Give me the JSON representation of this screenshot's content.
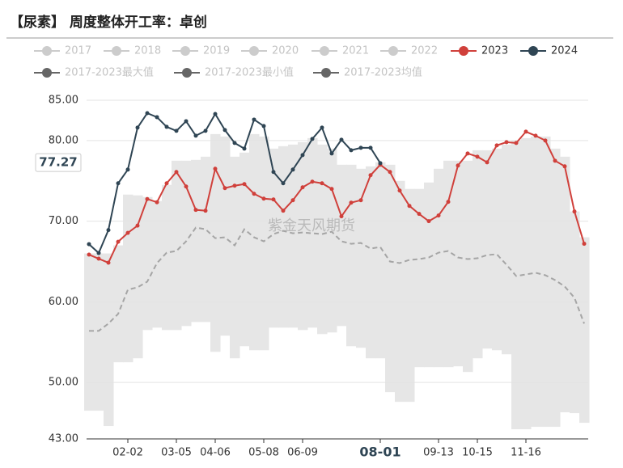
{
  "chart_data": {
    "type": "line",
    "title": "【尿素】 周度整体开工率：卓创",
    "watermark": "紫金天风期货",
    "categories": [
      null,
      null,
      null,
      null,
      "02-02",
      null,
      null,
      null,
      null,
      "03-05",
      null,
      null,
      null,
      "04-06",
      null,
      null,
      null,
      null,
      "05-08",
      null,
      null,
      null,
      "06-09",
      null,
      null,
      null,
      null,
      null,
      null,
      null,
      "08-01",
      null,
      null,
      null,
      null,
      null,
      "09-13",
      null,
      null,
      null,
      "10-15",
      null,
      null,
      null,
      null,
      "11-16",
      null,
      null,
      null,
      null,
      null,
      null
    ],
    "highlight_category": 30,
    "pointer_value": 77.27,
    "ylim": [
      43,
      85
    ],
    "yticks": [
      {
        "value": 43,
        "label": "43.00"
      },
      {
        "value": 50,
        "label": "50.00"
      },
      {
        "value": 60,
        "label": "60.00"
      },
      {
        "value": 70,
        "label": "70.00"
      },
      {
        "value": 80,
        "label": "80.00"
      },
      {
        "value": 85,
        "label": "85.00"
      }
    ],
    "grid": true,
    "series": [
      {
        "name": "2017",
        "color": "#cccccc",
        "visible": false
      },
      {
        "name": "2018",
        "color": "#cccccc",
        "visible": false
      },
      {
        "name": "2019",
        "color": "#cccccc",
        "visible": false
      },
      {
        "name": "2020",
        "color": "#cccccc",
        "visible": false
      },
      {
        "name": "2021",
        "color": "#cccccc",
        "visible": false
      },
      {
        "name": "2022",
        "color": "#cccccc",
        "visible": false
      },
      {
        "name": "2023",
        "color": "#d0403b",
        "visible": true,
        "values": [
          65.85,
          65.35,
          64.85,
          67.45,
          68.55,
          69.45,
          72.75,
          72.35,
          74.7,
          76.1,
          74.3,
          71.4,
          71.3,
          76.5,
          74.1,
          74.4,
          74.6,
          73.4,
          72.8,
          72.7,
          71.3,
          72.6,
          74.2,
          74.9,
          74.7,
          74.0,
          70.6,
          72.3,
          72.6,
          75.7,
          77.0,
          76.1,
          73.8,
          71.9,
          70.9,
          70.0,
          70.7,
          72.4,
          76.9,
          78.4,
          78.0,
          77.3,
          79.4,
          79.8,
          79.7,
          81.1,
          80.6,
          80.0,
          77.5,
          76.8,
          71.2,
          67.2
        ]
      },
      {
        "name": "2024",
        "color": "#2f4554",
        "visible": true,
        "values": [
          67.15,
          66.05,
          68.9,
          74.7,
          76.4,
          81.6,
          83.4,
          82.9,
          81.7,
          81.2,
          82.4,
          80.6,
          81.2,
          83.3,
          81.3,
          79.7,
          79.0,
          82.6,
          81.8,
          76.1,
          74.7,
          76.4,
          78.2,
          80.2,
          81.6,
          78.4,
          80.1,
          78.8,
          79.1,
          79.1,
          77.2,
          null,
          null,
          null,
          null,
          null,
          null,
          null,
          null,
          null,
          null,
          null,
          null,
          null,
          null,
          null,
          null,
          null,
          null,
          null,
          null,
          null
        ]
      },
      {
        "name": "2017-2023最大值",
        "color": "#666666",
        "role": "band-top",
        "values": [
          66.0,
          66.0,
          66.0,
          67.0,
          73.3,
          73.2,
          73.0,
          72.5,
          74.5,
          77.5,
          77.5,
          77.6,
          78.0,
          80.8,
          80.5,
          78.0,
          78.5,
          80.8,
          80.5,
          79.0,
          79.3,
          79.5,
          79.8,
          80.3,
          79.5,
          79.0,
          77.0,
          77.0,
          76.5,
          76.8,
          77.3,
          77.0,
          75.0,
          74.0,
          74.0,
          74.8,
          76.5,
          77.5,
          77.5,
          77.5,
          78.8,
          78.8,
          79.0,
          79.5,
          80.0,
          80.3,
          80.5,
          80.5,
          79.0,
          78.0,
          71.2,
          68.0
        ]
      },
      {
        "name": "2017-2023最小值",
        "color": "#666666",
        "role": "band-bottom",
        "values": [
          46.5,
          46.5,
          44.6,
          52.5,
          52.5,
          53.0,
          56.5,
          56.8,
          56.5,
          56.5,
          57.0,
          57.5,
          57.5,
          53.8,
          55.8,
          53.0,
          54.5,
          54.0,
          54.0,
          56.8,
          56.8,
          56.8,
          56.5,
          56.8,
          56.0,
          56.2,
          57.0,
          54.5,
          54.3,
          53.0,
          53.0,
          48.8,
          47.6,
          47.6,
          51.9,
          51.9,
          51.9,
          51.9,
          52.0,
          51.3,
          53.0,
          54.2,
          54.0,
          53.5,
          44.2,
          44.2,
          44.5,
          44.5,
          44.5,
          46.3,
          46.2,
          45.0
        ]
      },
      {
        "name": "2017-2023均值",
        "color": "#666666",
        "role": "mean",
        "values": [
          56.4,
          56.4,
          57.3,
          58.5,
          61.5,
          61.8,
          62.5,
          64.8,
          66.1,
          66.3,
          67.5,
          69.2,
          69.0,
          67.9,
          68.0,
          67.0,
          69.0,
          68.0,
          67.5,
          68.4,
          68.8,
          68.5,
          68.6,
          68.5,
          68.4,
          68.7,
          67.5,
          67.2,
          67.3,
          66.6,
          66.8,
          65.0,
          64.8,
          65.2,
          65.3,
          65.5,
          66.1,
          66.3,
          65.5,
          65.3,
          65.4,
          65.8,
          65.9,
          64.6,
          63.2,
          63.4,
          63.6,
          63.3,
          62.7,
          61.9,
          60.5,
          57.3
        ]
      }
    ]
  }
}
